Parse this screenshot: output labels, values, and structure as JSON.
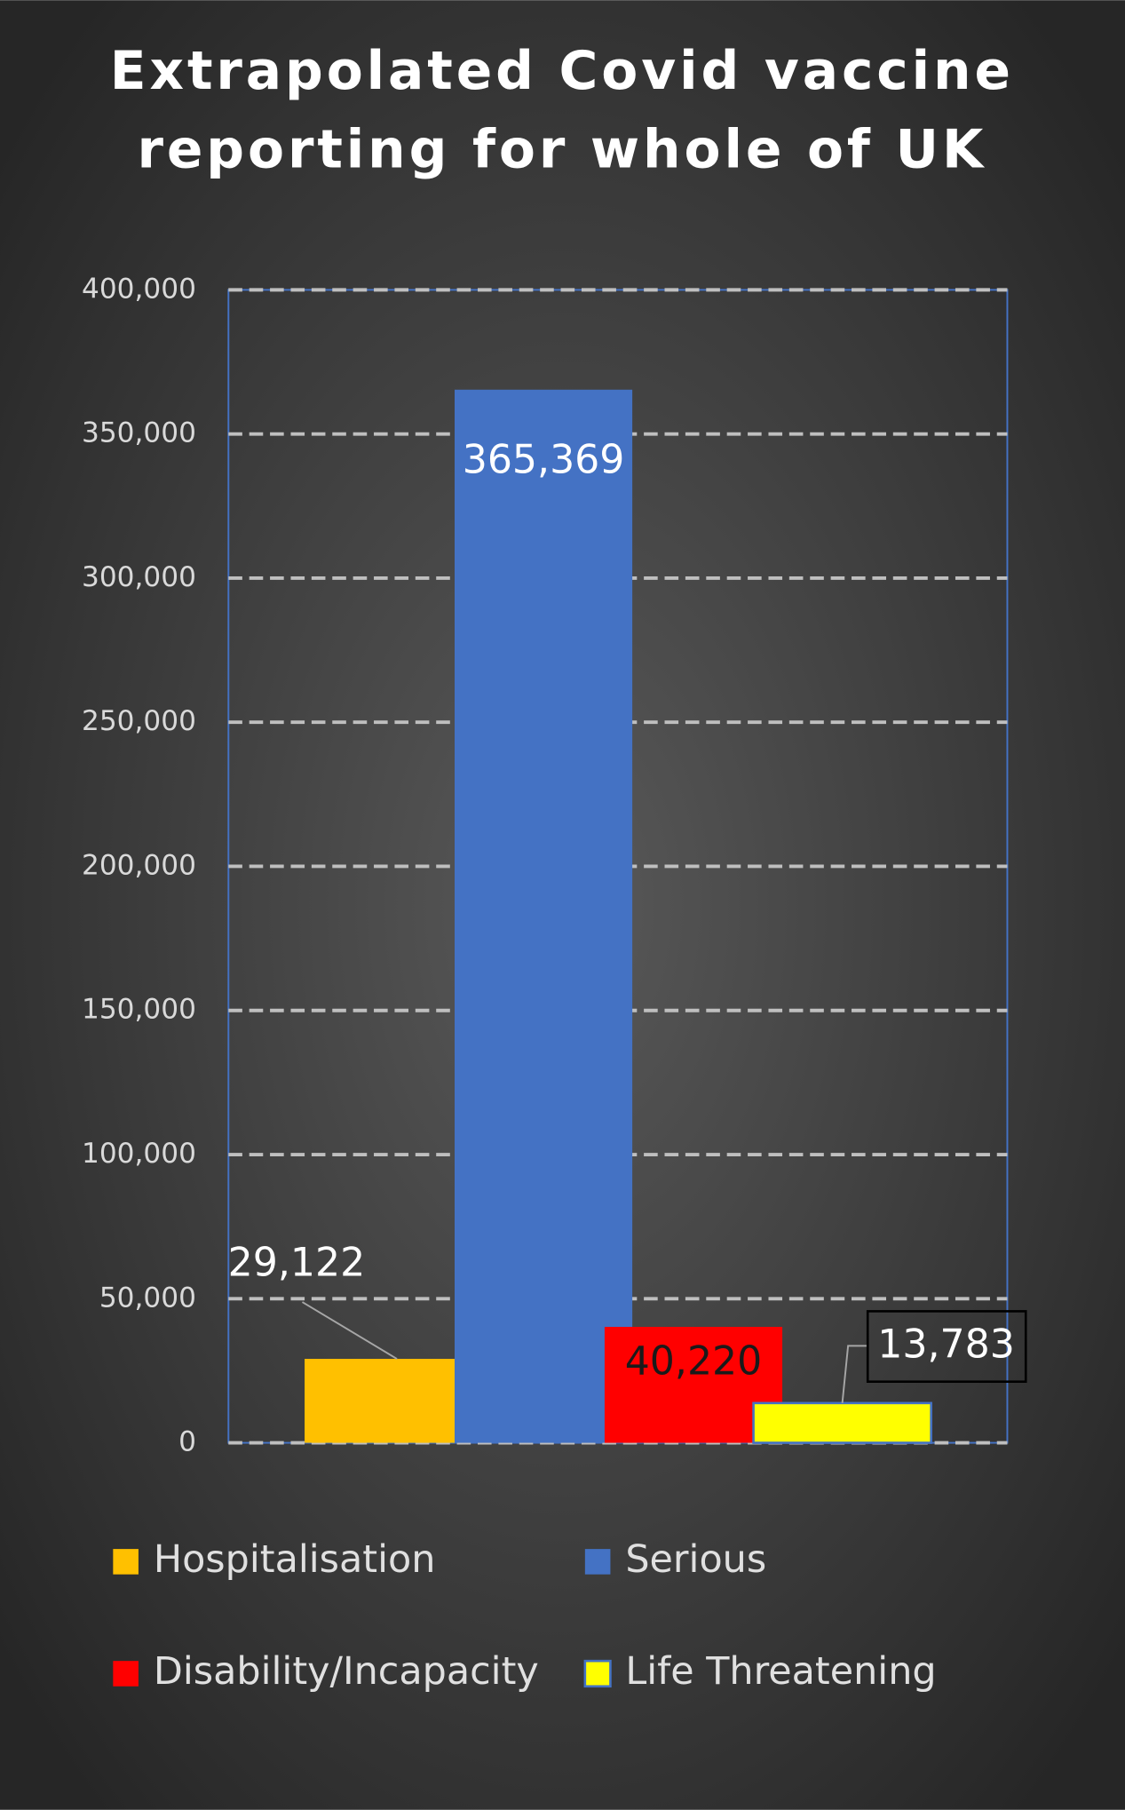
{
  "chart_data": {
    "type": "bar",
    "title": [
      "Extrapolated Covid vaccine",
      "reporting for whole of UK"
    ],
    "series": [
      {
        "name": "Hospitalisation",
        "color": "#ffc000",
        "values": [
          29122
        ],
        "value_labels": [
          "29,122"
        ]
      },
      {
        "name": "Serious",
        "color": "#4472c4",
        "values": [
          365369
        ],
        "value_labels": [
          "365,369"
        ]
      },
      {
        "name": "Disability/Incapacity",
        "color": "#ff0000",
        "values": [
          40220
        ],
        "value_labels": [
          "40,220"
        ]
      },
      {
        "name": "Life Threatening",
        "color": "#ffff00",
        "values": [
          13783
        ],
        "value_labels": [
          "13,783"
        ]
      }
    ],
    "ylim": [
      0,
      400000
    ],
    "yticks": [
      0,
      {
        "value": 50000,
        "label": "50,000"
      },
      {
        "value": 100000,
        "label": "100,000"
      },
      {
        "value": 150000,
        "label": "150,000"
      },
      {
        "value": 200000,
        "label": "200,000"
      },
      {
        "value": 250000,
        "label": "250,000"
      },
      {
        "value": 300000,
        "label": "300,000"
      },
      {
        "value": 350000,
        "label": "350,000"
      },
      {
        "value": 400000,
        "label": "400,000"
      }
    ],
    "grid": true
  }
}
